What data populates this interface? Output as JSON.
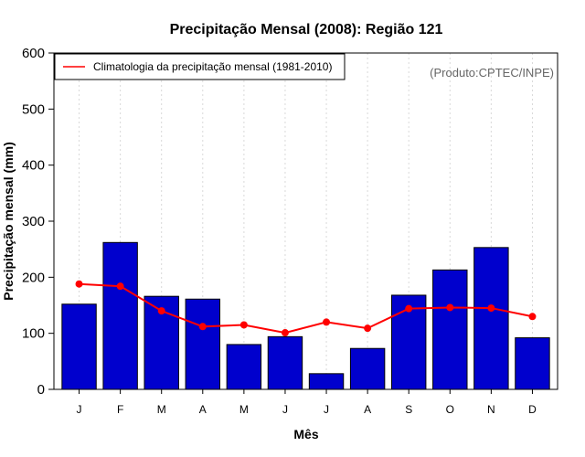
{
  "chart_data": {
    "type": "bar",
    "title": "Precipitação Mensal (2008): Região 121",
    "xlabel": "Mês",
    "ylabel": "Precipitação mensal (mm)",
    "ylim": [
      0,
      600
    ],
    "yticks": [
      "0",
      "100",
      "200",
      "300",
      "400",
      "500",
      "600"
    ],
    "categories": [
      "J",
      "F",
      "M",
      "A",
      "M",
      "J",
      "J",
      "A",
      "S",
      "O",
      "N",
      "D"
    ],
    "series": [
      {
        "name": "Precipitação mensal 2008",
        "type": "bar",
        "color": "#0000cd",
        "values": [
          152,
          262,
          166,
          161,
          80,
          94,
          28,
          73,
          168,
          213,
          253,
          92
        ]
      },
      {
        "name": "Climatologia da precipitação mensal (1981-2010)",
        "type": "line",
        "color": "#ff0000",
        "values": [
          188,
          184,
          140,
          112,
          115,
          101,
          120,
          109,
          144,
          146,
          145,
          130
        ]
      }
    ],
    "legend": {
      "position": "top-left",
      "entries": [
        "Climatologia da precipitação mensal (1981-2010)"
      ]
    },
    "annotation": "(Produto:CPTEC/INPE)",
    "grid": "vertical dotted"
  }
}
